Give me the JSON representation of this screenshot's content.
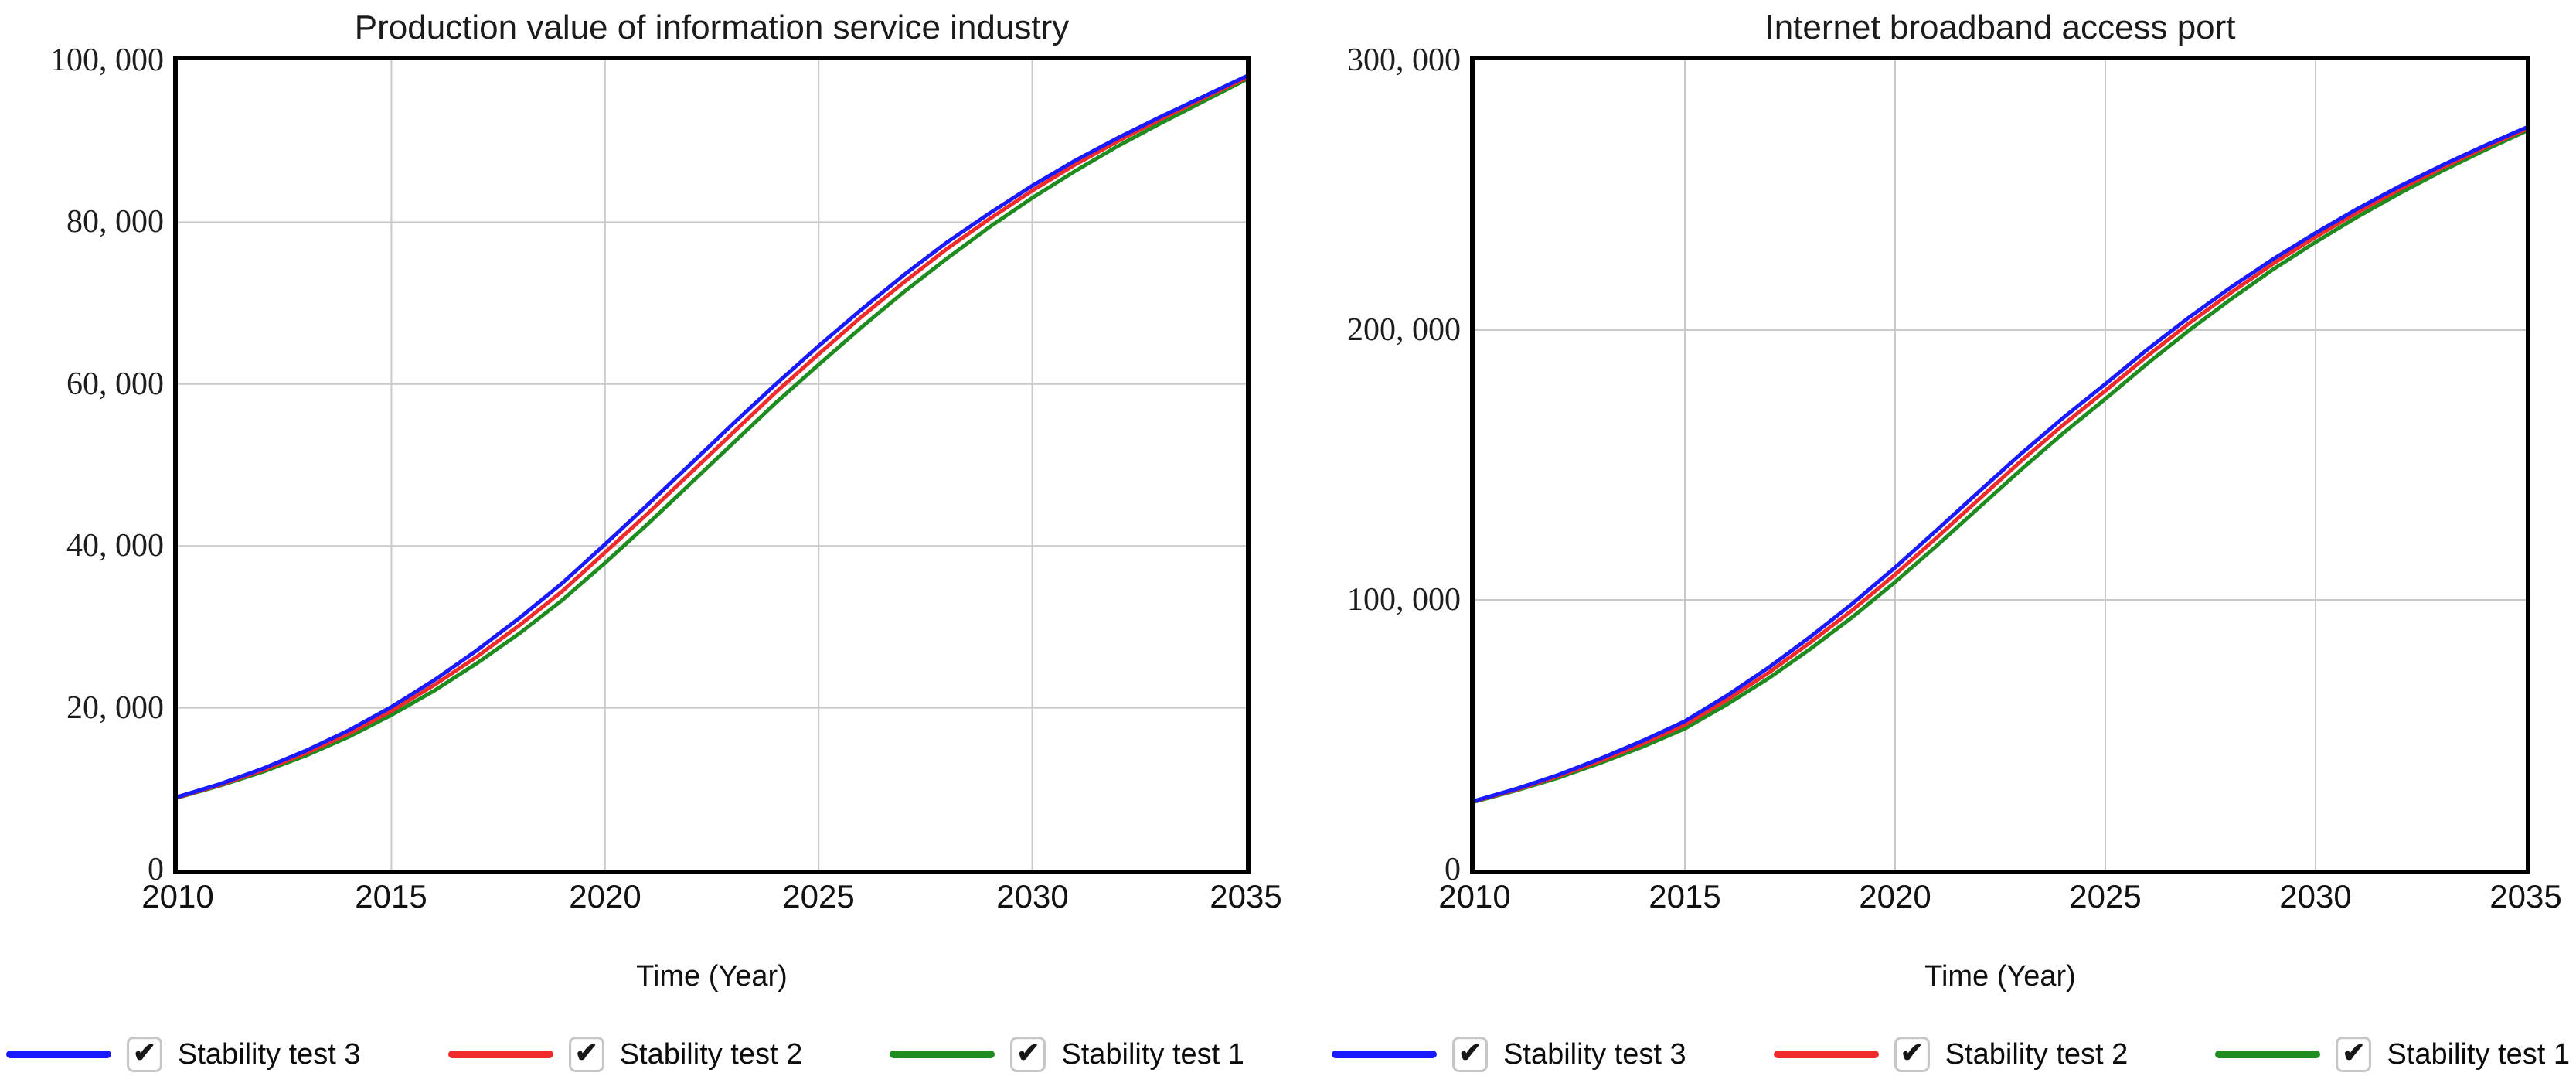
{
  "style": {
    "grid_color": "#c9c9c9",
    "frame_color": "#000000",
    "text_color": "#1a1a1a",
    "series_line_width": 5
  },
  "chart_data": [
    {
      "type": "line",
      "title": "Production value of information service industry",
      "xlabel": "Time (Year)",
      "xlim": [
        2010,
        2035
      ],
      "ylim": [
        0,
        100000
      ],
      "grid": true,
      "legend_position": "bottom",
      "x_ticks": [
        2010,
        2015,
        2020,
        2025,
        2030,
        2035
      ],
      "x_tick_labels": [
        "2010",
        "2015",
        "2020",
        "2025",
        "2030",
        "2035"
      ],
      "y_tick_values": [
        0,
        20000,
        40000,
        60000,
        80000,
        100000
      ],
      "y_tick_labels": [
        "0",
        "20, 000",
        "40, 000",
        "60, 000",
        "80, 000",
        "100, 000"
      ],
      "x": [
        2010,
        2011,
        2012,
        2013,
        2014,
        2015,
        2016,
        2017,
        2018,
        2019,
        2020,
        2021,
        2022,
        2023,
        2024,
        2025,
        2026,
        2027,
        2028,
        2029,
        2030,
        2031,
        2032,
        2033,
        2034,
        2035
      ],
      "series": [
        {
          "name": "Stability test 3",
          "color": "#1a1aff",
          "values": [
            9000,
            10600,
            12500,
            14700,
            17200,
            20100,
            23400,
            27100,
            31100,
            35400,
            40200,
            45100,
            50100,
            55100,
            60000,
            64700,
            69200,
            73500,
            77500,
            81100,
            84500,
            87600,
            90400,
            93000,
            95500,
            98000
          ]
        },
        {
          "name": "Stability test 2",
          "color": "#ef2b2b",
          "values": [
            8950,
            10500,
            12300,
            14400,
            16800,
            19600,
            22800,
            26300,
            30200,
            34400,
            39200,
            44000,
            49000,
            54000,
            59000,
            63700,
            68300,
            72600,
            76700,
            80400,
            83900,
            87100,
            90000,
            92700,
            95300,
            97800
          ]
        },
        {
          "name": "Stability test 1",
          "color": "#1f8c1f",
          "values": [
            8900,
            10400,
            12100,
            14100,
            16400,
            19100,
            22100,
            25500,
            29200,
            33300,
            37900,
            42700,
            47700,
            52700,
            57700,
            62400,
            67000,
            71400,
            75500,
            79400,
            83000,
            86300,
            89400,
            92200,
            94900,
            97600
          ]
        }
      ]
    },
    {
      "type": "line",
      "title": "Internet broadband access port",
      "xlabel": "Time (Year)",
      "xlim": [
        2010,
        2035
      ],
      "ylim": [
        0,
        300000
      ],
      "grid": true,
      "legend_position": "bottom",
      "x_ticks": [
        2010,
        2015,
        2020,
        2025,
        2030,
        2035
      ],
      "x_tick_labels": [
        "2010",
        "2015",
        "2020",
        "2025",
        "2030",
        "2035"
      ],
      "y_tick_values": [
        0,
        100000,
        200000,
        300000
      ],
      "y_tick_labels": [
        "0",
        "100, 000",
        "200, 000",
        "300, 000"
      ],
      "x": [
        2010,
        2011,
        2012,
        2013,
        2014,
        2015,
        2016,
        2017,
        2018,
        2019,
        2020,
        2021,
        2022,
        2023,
        2024,
        2025,
        2026,
        2027,
        2028,
        2029,
        2030,
        2031,
        2032,
        2033,
        2034,
        2035
      ],
      "series": [
        {
          "name": "Stability test 3",
          "color": "#1a1aff",
          "values": [
            25500,
            30000,
            35200,
            41200,
            47800,
            55000,
            64500,
            75000,
            86500,
            98800,
            112000,
            126000,
            140200,
            154200,
            167500,
            180000,
            192800,
            204800,
            216000,
            226400,
            236000,
            245000,
            253300,
            261000,
            268200,
            275000
          ]
        },
        {
          "name": "Stability test 2",
          "color": "#ef2b2b",
          "values": [
            25350,
            29700,
            34700,
            40400,
            46700,
            53700,
            62900,
            73100,
            84400,
            96400,
            109400,
            123200,
            137400,
            151500,
            164900,
            177500,
            190400,
            202600,
            214000,
            224700,
            234500,
            243700,
            252200,
            260100,
            267500,
            274400
          ]
        },
        {
          "name": "Stability test 1",
          "color": "#1f8c1f",
          "values": [
            25200,
            29400,
            34100,
            39600,
            45600,
            52300,
            61200,
            71000,
            82000,
            93800,
            106600,
            120200,
            134300,
            148300,
            161800,
            174500,
            187600,
            200000,
            211600,
            222600,
            232600,
            242000,
            250700,
            258900,
            266500,
            273700
          ]
        }
      ]
    }
  ],
  "legend": {
    "check_glyph": "✔",
    "items": [
      {
        "label": "Stability test 3",
        "color": "#1a1aff",
        "checked": true
      },
      {
        "label": "Stability test 2",
        "color": "#ef2b2b",
        "checked": true
      },
      {
        "label": "Stability test 1",
        "color": "#1f8c1f",
        "checked": true
      },
      {
        "label": "Stability test 3",
        "color": "#1a1aff",
        "checked": true
      },
      {
        "label": "Stability test 2",
        "color": "#ef2b2b",
        "checked": true
      },
      {
        "label": "Stability test 1",
        "color": "#1f8c1f",
        "checked": true
      }
    ]
  }
}
